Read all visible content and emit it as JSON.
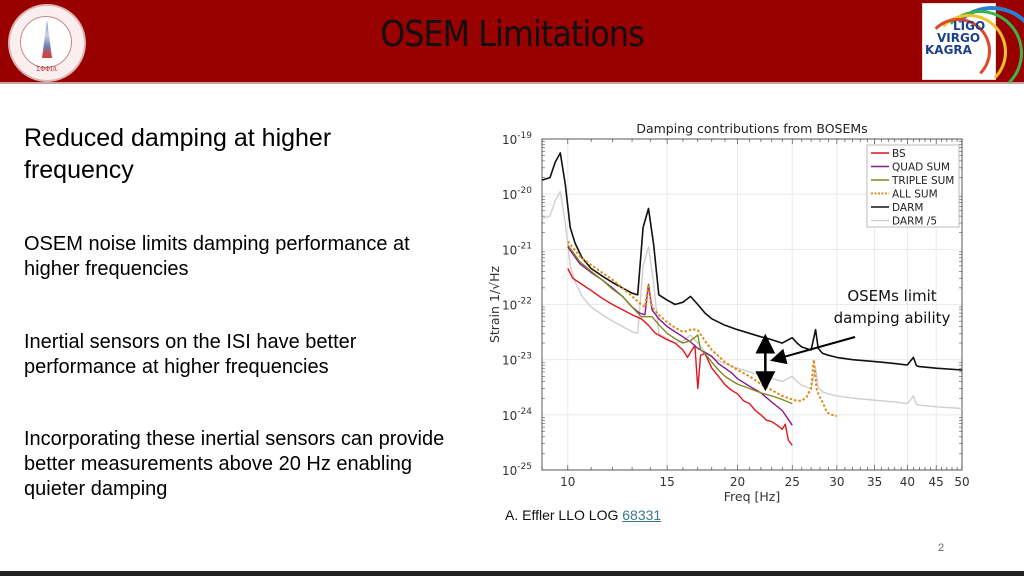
{
  "header": {
    "title": "OSEM Limitations",
    "left_logo": "stanford-university-lgo-group-seal",
    "left_logo_motto": "ΣΦΦΙΑ",
    "right_logo_lines": [
      "LIGO",
      "VIRGO",
      "KAGRA"
    ]
  },
  "body": {
    "heading": "Reduced damping at higher frequency",
    "points": [
      "OSEM noise limits damping performance at higher frequencies",
      "Inertial sensors on the ISI have better performance at higher frequencies",
      "Incorporating these inertial sensors can provide better measurements above 20 Hz enabling quieter damping"
    ]
  },
  "caption": {
    "prefix": "A. Effler LLO LOG ",
    "link": "68331"
  },
  "page_number": "2",
  "chart_data": {
    "type": "line",
    "title": "Damping contributions from BOSEMs",
    "xlabel": "Freq [Hz]",
    "ylabel": "Strain 1/√Hz",
    "xscale": "log",
    "yscale": "log",
    "xlim": [
      9,
      50
    ],
    "ylim": [
      1e-25,
      1e-19
    ],
    "xticks": [
      10,
      15,
      20,
      25,
      30,
      35,
      40,
      45,
      50
    ],
    "yticks": [
      1e-25,
      1e-24,
      1e-23,
      1e-22,
      1e-21,
      1e-20,
      1e-19
    ],
    "ytick_labels": [
      [
        "10",
        "-25"
      ],
      [
        "10",
        "-24"
      ],
      [
        "10",
        "-23"
      ],
      [
        "10",
        "-22"
      ],
      [
        "10",
        "-21"
      ],
      [
        "10",
        "-20"
      ],
      [
        "10",
        "-19"
      ]
    ],
    "grid": true,
    "legend_position": "top-right",
    "annotation": {
      "text_lines": [
        "OSEMs limit",
        "damping ability"
      ],
      "arrow_target": [
        23.2,
        1e-23
      ],
      "double_arrow_x": 22.4,
      "double_arrow_y": [
        2.4e-23,
        3.3e-24
      ]
    },
    "series": [
      {
        "name": "BS",
        "color": "#e0161b",
        "style": "solid",
        "x": [
          10,
          10.2,
          10.6,
          11,
          11.5,
          12,
          12.5,
          13,
          13.5,
          13.9,
          14.3,
          15,
          15.5,
          16,
          16.3,
          16.6,
          16.8,
          17,
          17.2,
          17.5,
          18,
          18.5,
          19,
          19.5,
          20,
          20.5,
          21,
          21.5,
          22,
          22.5,
          23,
          23.5,
          24,
          24.3,
          24.6,
          25
        ],
        "y": [
          4.5e-22,
          3e-22,
          2.3e-22,
          1.8e-22,
          1.3e-22,
          1e-22,
          8e-23,
          6.5e-23,
          5.5e-23,
          4.2e-23,
          3e-23,
          2.3e-23,
          2e-23,
          1.5e-23,
          1.1e-23,
          1.5e-23,
          1.8e-23,
          3e-24,
          1.2e-23,
          1.3e-23,
          7e-24,
          5e-24,
          3.5e-24,
          2.8e-24,
          2.4e-24,
          1.8e-24,
          1.6e-24,
          1.2e-24,
          1e-24,
          8e-25,
          7.5e-25,
          6.5e-25,
          5.5e-25,
          6.8e-25,
          3.5e-25,
          2.8e-25
        ]
      },
      {
        "name": "QUAD SUM",
        "color": "#8b168f",
        "style": "solid",
        "x": [
          10,
          10.5,
          11,
          11.5,
          12,
          12.5,
          13,
          13.4,
          13.7,
          13.9,
          14.1,
          14.5,
          15,
          15.5,
          16,
          16.5,
          17,
          17.5,
          18,
          18.5,
          19,
          19.5,
          20,
          21,
          22,
          23,
          24,
          25
        ],
        "y": [
          1.1e-21,
          5.5e-22,
          3.8e-22,
          2.8e-22,
          2e-22,
          1.4e-22,
          9e-23,
          7e-23,
          6.5e-23,
          2.3e-22,
          8e-23,
          5.5e-23,
          4e-23,
          3.2e-23,
          2.6e-23,
          2.1e-23,
          1.6e-23,
          1.35e-23,
          1.15e-23,
          8.5e-24,
          7e-24,
          5.8e-24,
          4.5e-24,
          3.3e-24,
          2.5e-24,
          1.7e-24,
          1.2e-24,
          6.5e-25
        ]
      },
      {
        "name": "TRIPLE SUM",
        "color": "#7c8a1e",
        "style": "solid",
        "x": [
          10,
          10.5,
          11,
          11.5,
          12,
          12.5,
          13,
          13.5,
          13.8,
          14.1,
          14.5,
          15,
          15.5,
          16,
          16.5,
          17,
          17.2,
          17.5,
          18,
          18.5,
          19,
          19.5,
          20,
          21,
          22,
          23,
          24,
          25
        ],
        "y": [
          1.2e-21,
          6e-22,
          4e-22,
          2.8e-22,
          1.9e-22,
          1.4e-22,
          9e-23,
          6e-23,
          6e-23,
          6e-23,
          4.3e-23,
          3e-23,
          2.4e-23,
          2e-23,
          2.2e-23,
          2.8e-23,
          1.5e-23,
          1.3e-23,
          9e-24,
          6.5e-24,
          5e-24,
          4.2e-24,
          3.6e-24,
          3e-24,
          2.5e-24,
          2.2e-24,
          1.9e-24,
          1.6e-24
        ]
      },
      {
        "name": "ALL SUM",
        "color": "#e08a1a",
        "style": "dotted",
        "x": [
          10,
          10.5,
          11,
          11.5,
          12,
          12.5,
          13,
          13.5,
          13.7,
          13.9,
          14.1,
          14.5,
          15,
          15.5,
          16,
          16.3,
          16.6,
          17,
          17.5,
          18,
          19,
          20,
          21,
          22,
          23,
          24,
          25,
          25.5,
          26,
          26.5,
          27,
          27.3,
          27.6,
          27.9,
          28.3,
          28.8,
          29.4,
          30
        ],
        "y": [
          1.4e-21,
          7.5e-22,
          5.2e-22,
          3.8e-22,
          2.8e-22,
          2e-22,
          1.4e-22,
          1e-22,
          9e-23,
          2.3e-22,
          9e-23,
          6.5e-23,
          4.8e-23,
          3.8e-23,
          3.2e-23,
          3.3e-23,
          3.6e-23,
          3.4e-23,
          2.2e-23,
          1.5e-23,
          9e-24,
          6.5e-24,
          5e-24,
          3.6e-24,
          2.8e-24,
          2.2e-24,
          1.9e-24,
          1.8e-24,
          1.8e-24,
          2.1e-24,
          3e-24,
          1e-23,
          3e-24,
          2.2e-24,
          1.7e-24,
          1.1e-24,
          1e-24,
          9.5e-25
        ]
      },
      {
        "name": "DARM",
        "color": "#111111",
        "style": "solid",
        "x": [
          9,
          9.3,
          9.5,
          9.7,
          9.9,
          10.1,
          10.3,
          10.6,
          11,
          11.5,
          12,
          12.5,
          13,
          13.3,
          13.6,
          13.9,
          14.2,
          14.5,
          15,
          15.5,
          16,
          16.5,
          17,
          17.5,
          18,
          19,
          20,
          21,
          22,
          23,
          24,
          25,
          25.5,
          26,
          27,
          27.5,
          27.8,
          28.3,
          29,
          30,
          32,
          34,
          36,
          38,
          40,
          41,
          41.5,
          42,
          45,
          50
        ],
        "y": [
          1.8e-20,
          2e-20,
          3.8e-20,
          5.6e-20,
          1.5e-20,
          2.5e-21,
          1.3e-21,
          7e-22,
          4.5e-22,
          3.3e-22,
          2.5e-22,
          2e-22,
          1.6e-22,
          1.5e-22,
          2.5e-21,
          5.5e-21,
          1.2e-21,
          1.5e-22,
          1.2e-22,
          1e-22,
          1.1e-22,
          1.4e-22,
          1e-22,
          7e-23,
          5.5e-23,
          4.2e-23,
          3.5e-23,
          3e-23,
          2.6e-23,
          2.3e-23,
          2e-23,
          2.5e-23,
          2e-23,
          1.7e-23,
          1.5e-23,
          3.5e-23,
          1.6e-23,
          1.3e-23,
          1.2e-23,
          1.1e-23,
          1e-23,
          9.5e-24,
          9e-24,
          8.5e-24,
          8e-24,
          1.1e-23,
          7.8e-24,
          7.5e-24,
          7e-24,
          6.5e-24
        ]
      },
      {
        "name": "DARM /5",
        "color": "#cfcfcf",
        "style": "solid",
        "x": [
          9,
          9.3,
          9.5,
          9.7,
          9.9,
          10.1,
          10.3,
          10.6,
          11,
          11.5,
          12,
          12.5,
          13,
          13.3,
          13.6,
          13.9,
          14.2,
          14.5,
          15,
          15.5,
          16,
          16.5,
          17,
          17.5,
          18,
          19,
          20,
          21,
          22,
          23,
          24,
          25,
          25.5,
          26,
          27,
          27.5,
          27.8,
          28.3,
          29,
          30,
          32,
          34,
          36,
          38,
          40,
          41,
          41.5,
          42,
          45,
          50
        ],
        "y": [
          3.6e-21,
          4e-21,
          7.6e-21,
          1.12e-20,
          3e-21,
          5e-22,
          2.6e-22,
          1.4e-22,
          9e-23,
          6.6e-23,
          5e-23,
          4e-23,
          3.2e-23,
          3e-23,
          5e-22,
          1.1e-21,
          2.4e-22,
          3e-23,
          2.4e-23,
          2e-23,
          2.2e-23,
          2.8e-23,
          2e-23,
          1.4e-23,
          1.1e-23,
          8.4e-24,
          7e-24,
          6e-24,
          5.2e-24,
          4.6e-24,
          4e-24,
          5e-24,
          4e-24,
          3.4e-24,
          3e-24,
          7e-24,
          3.2e-24,
          2.6e-24,
          2.4e-24,
          2.2e-24,
          2e-24,
          1.9e-24,
          1.8e-24,
          1.7e-24,
          1.6e-24,
          2.2e-24,
          1.56e-24,
          1.5e-24,
          1.4e-24,
          1.3e-24
        ]
      }
    ]
  }
}
